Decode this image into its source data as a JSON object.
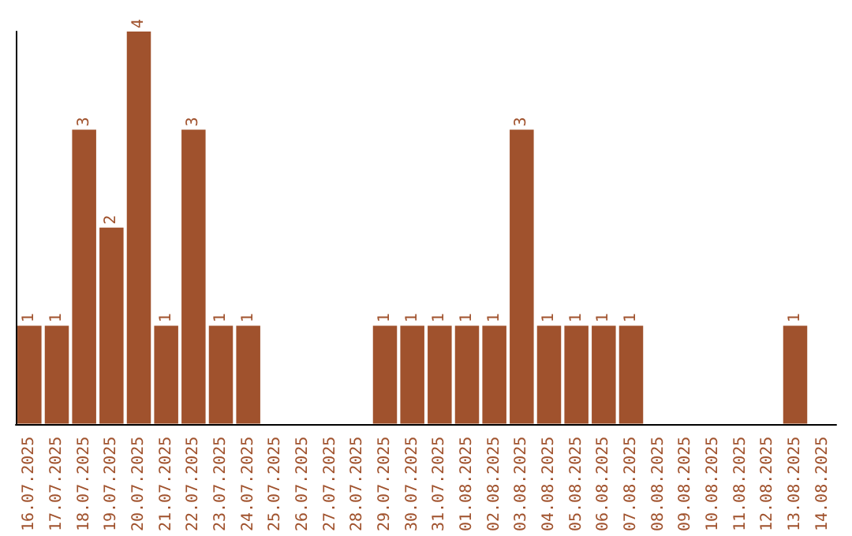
{
  "chart_data": {
    "type": "bar",
    "categories": [
      "16.07.2025",
      "17.07.2025",
      "18.07.2025",
      "19.07.2025",
      "20.07.2025",
      "21.07.2025",
      "22.07.2025",
      "23.07.2025",
      "24.07.2025",
      "25.07.2025",
      "26.07.2025",
      "27.07.2025",
      "28.07.2025",
      "29.07.2025",
      "30.07.2025",
      "31.07.2025",
      "01.08.2025",
      "02.08.2025",
      "03.08.2025",
      "04.08.2025",
      "05.08.2025",
      "06.08.2025",
      "07.08.2025",
      "08.08.2025",
      "09.08.2025",
      "10.08.2025",
      "11.08.2025",
      "12.08.2025",
      "13.08.2025",
      "14.08.2025"
    ],
    "values": [
      1,
      1,
      3,
      2,
      4,
      1,
      3,
      1,
      1,
      0,
      0,
      0,
      0,
      1,
      1,
      1,
      1,
      1,
      3,
      1,
      1,
      1,
      1,
      0,
      0,
      0,
      0,
      0,
      1,
      0
    ],
    "value_labels": [
      "1",
      "1",
      "3",
      "2",
      "4",
      "1",
      "3",
      "1",
      "1",
      null,
      null,
      null,
      null,
      "1",
      "1",
      "1",
      "1",
      "1",
      "3",
      "1",
      "1",
      "1",
      "1",
      null,
      null,
      null,
      null,
      null,
      "1",
      null
    ],
    "color": "#a0522d",
    "tick_labels": "x",
    "grid": false
  }
}
